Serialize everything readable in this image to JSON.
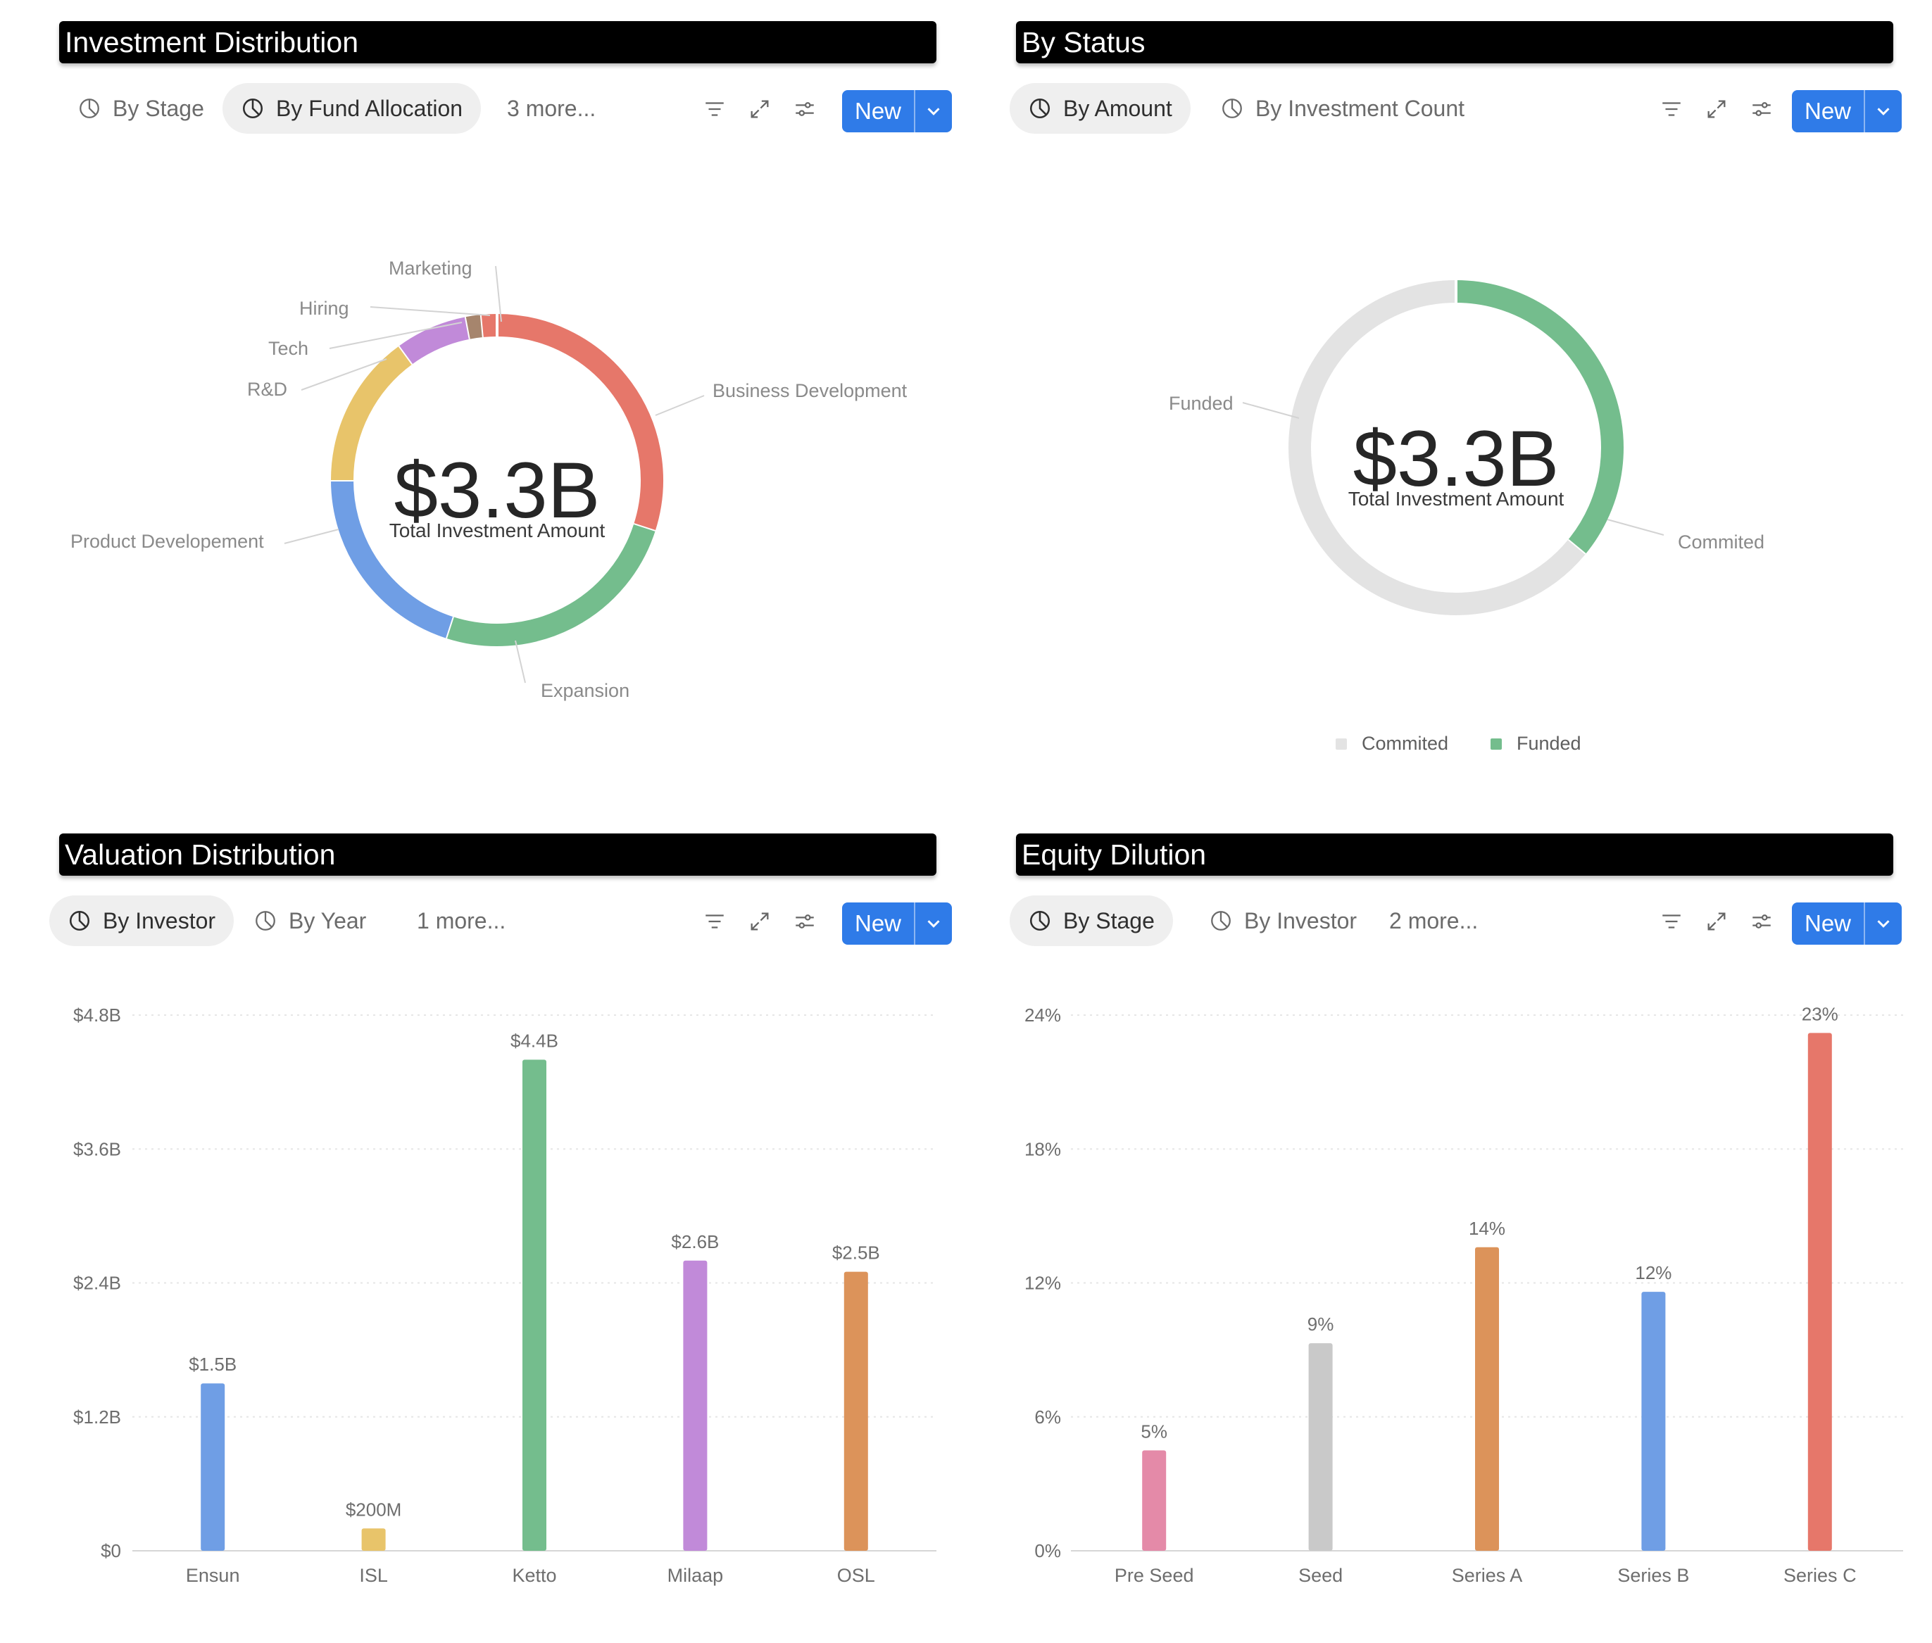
{
  "colors": {
    "blue": "#6f9ee5",
    "yellow": "#e8c46a",
    "green": "#74bd8d",
    "purple": "#c18ad9",
    "orange": "#dc935a",
    "red": "#e6776a",
    "pink": "#e48aa8",
    "gray": "#c9c9c9",
    "light_gray": "#e3e3e3",
    "brown": "#a6856d",
    "primary_button": "#2f7be8"
  },
  "common": {
    "new_label": "New",
    "icons": [
      "pie-chart-icon",
      "filter-icon",
      "expand-icon",
      "sliders-icon",
      "chevron-down-icon"
    ]
  },
  "invest": {
    "title": "Investment Distribution",
    "tabs": [
      {
        "label": "By Stage",
        "active": false
      },
      {
        "label": "By Fund Allocation",
        "active": true
      }
    ],
    "more": "3 more...",
    "center_value": "$3.3B",
    "center_label": "Total Investment Amount",
    "labels": {
      "marketing": "Marketing",
      "hiring": "Hiring",
      "tech": "Tech",
      "rnd": "R&D",
      "business": "Business Development",
      "product": "Product Developement",
      "expansion": "Expansion"
    }
  },
  "status": {
    "title": "By Status",
    "tabs": [
      {
        "label": "By Amount",
        "active": true
      },
      {
        "label": "By Investment Count",
        "active": false
      }
    ],
    "center_value": "$3.3B",
    "center_label": "Total Investment Amount",
    "labels": {
      "funded": "Funded",
      "commited": "Commited"
    },
    "legend": [
      {
        "label": "Commited",
        "color": "#e3e3e3"
      },
      {
        "label": "Funded",
        "color": "#74bd8d"
      }
    ]
  },
  "valuation": {
    "title": "Valuation Distribution",
    "tabs": [
      {
        "label": "By Investor",
        "active": true
      },
      {
        "label": "By Year",
        "active": false
      }
    ],
    "more": "1 more..."
  },
  "equity": {
    "title": "Equity Dilution",
    "tabs": [
      {
        "label": "By Stage",
        "active": true
      },
      {
        "label": "By Investor",
        "active": false
      }
    ],
    "more": "2 more..."
  },
  "chart_data": [
    {
      "type": "pie",
      "variant": "donut",
      "center_text": "$3.3B",
      "center_subtitle": "Total Investment Amount",
      "categories": [
        "Business Development",
        "Expansion",
        "Product Developement",
        "R&D",
        "Tech",
        "Hiring",
        "Marketing"
      ],
      "values": [
        30,
        25,
        20,
        15,
        7,
        1.5,
        1.5
      ],
      "colors": [
        "#e6776a",
        "#74bd8d",
        "#6f9ee5",
        "#e8c46a",
        "#c18ad9",
        "#a6856d",
        "#e6776a"
      ]
    },
    {
      "type": "pie",
      "variant": "donut",
      "center_text": "$3.3B",
      "center_subtitle": "Total Investment Amount",
      "categories": [
        "Funded",
        "Commited"
      ],
      "values": [
        36,
        64
      ],
      "colors": [
        "#74bd8d",
        "#e3e3e3"
      ],
      "legend": "bottom"
    },
    {
      "type": "bar",
      "categories": [
        "Ensun",
        "ISL",
        "Ketto",
        "Milaap",
        "OSL"
      ],
      "values": [
        1.5,
        0.2,
        4.4,
        2.6,
        2.5
      ],
      "value_labels": [
        "$1.5B",
        "$200M",
        "$4.4B",
        "$2.6B",
        "$2.5B"
      ],
      "colors": [
        "#6f9ee5",
        "#e8c46a",
        "#74bd8d",
        "#c18ad9",
        "#dc935a"
      ],
      "ylim": [
        0,
        4.8
      ],
      "yticks": [
        0,
        1.2,
        2.4,
        3.6,
        4.8
      ],
      "ytick_labels": [
        "$0",
        "$1.2B",
        "$2.4B",
        "$3.6B",
        "$4.8B"
      ],
      "grid": true
    },
    {
      "type": "bar",
      "categories": [
        "Pre Seed",
        "Seed",
        "Series A",
        "Series B",
        "Series C"
      ],
      "values": [
        4.5,
        9.3,
        13.6,
        11.6,
        23.2
      ],
      "value_labels": [
        "5%",
        "9%",
        "14%",
        "12%",
        "23%"
      ],
      "colors": [
        "#e48aa8",
        "#c9c9c9",
        "#dc935a",
        "#6f9ee5",
        "#e6776a"
      ],
      "ylim": [
        0,
        24
      ],
      "yticks": [
        0,
        6,
        12,
        18,
        24
      ],
      "ytick_labels": [
        "0%",
        "6%",
        "12%",
        "18%",
        "24%"
      ],
      "grid": true
    }
  ]
}
